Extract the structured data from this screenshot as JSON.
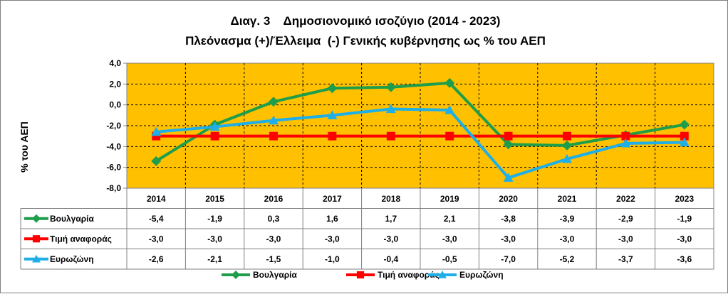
{
  "chart_data": {
    "type": "line",
    "title": "Διαγ. 3    Δημοσιονομικό ισοζύγιο (2014 - 2023)",
    "subtitle": "Πλεόνασμα (+)/Έλλειμα  (-) Γενικής κυβέρνησης ως % του ΑΕΠ",
    "ylabel": "% του ΑΕΠ",
    "xlabel": "",
    "ylim": [
      -8,
      4
    ],
    "yticks": [
      "4,0",
      "2,0",
      "0,0",
      "-2,0",
      "-4,0",
      "-6,0",
      "-8,0"
    ],
    "ytick_values": [
      4,
      2,
      0,
      -2,
      -4,
      -6,
      -8
    ],
    "categories": [
      "2014",
      "2015",
      "2016",
      "2017",
      "2018",
      "2019",
      "2020",
      "2021",
      "2022",
      "2023"
    ],
    "grid": true,
    "plot_background": "#FFC000",
    "legend_position": "bottom",
    "series": [
      {
        "name": "Βουλγαρία",
        "values": [
          -5.4,
          -1.9,
          0.3,
          1.6,
          1.7,
          2.1,
          -3.8,
          -3.9,
          -2.9,
          -1.9
        ],
        "labels": [
          "-5,4",
          "-1,9",
          "0,3",
          "1,6",
          "1,7",
          "2,1",
          "-3,8",
          "-3,9",
          "-2,9",
          "-1,9"
        ],
        "color": "#1E9E4A",
        "marker": "diamond"
      },
      {
        "name": "Τιμή αναφοράς",
        "values": [
          -3.0,
          -3.0,
          -3.0,
          -3.0,
          -3.0,
          -3.0,
          -3.0,
          -3.0,
          -3.0,
          -3.0
        ],
        "labels": [
          "-3,0",
          "-3,0",
          "-3,0",
          "-3,0",
          "-3,0",
          "-3,0",
          "-3,0",
          "-3,0",
          "-3,0",
          "-3,0"
        ],
        "color": "#FF0000",
        "marker": "square"
      },
      {
        "name": "Ευρωζώνη",
        "values": [
          -2.6,
          -2.1,
          -1.5,
          -1.0,
          -0.4,
          -0.5,
          -7.0,
          -5.2,
          -3.7,
          -3.6
        ],
        "labels": [
          "-2,6",
          "-2,1",
          "-1,5",
          "-1,0",
          "-0,4",
          "-0,5",
          "-7,0",
          "-5,2",
          "-3,7",
          "-3,6"
        ],
        "color": "#1EAEE8",
        "marker": "triangle"
      }
    ]
  }
}
